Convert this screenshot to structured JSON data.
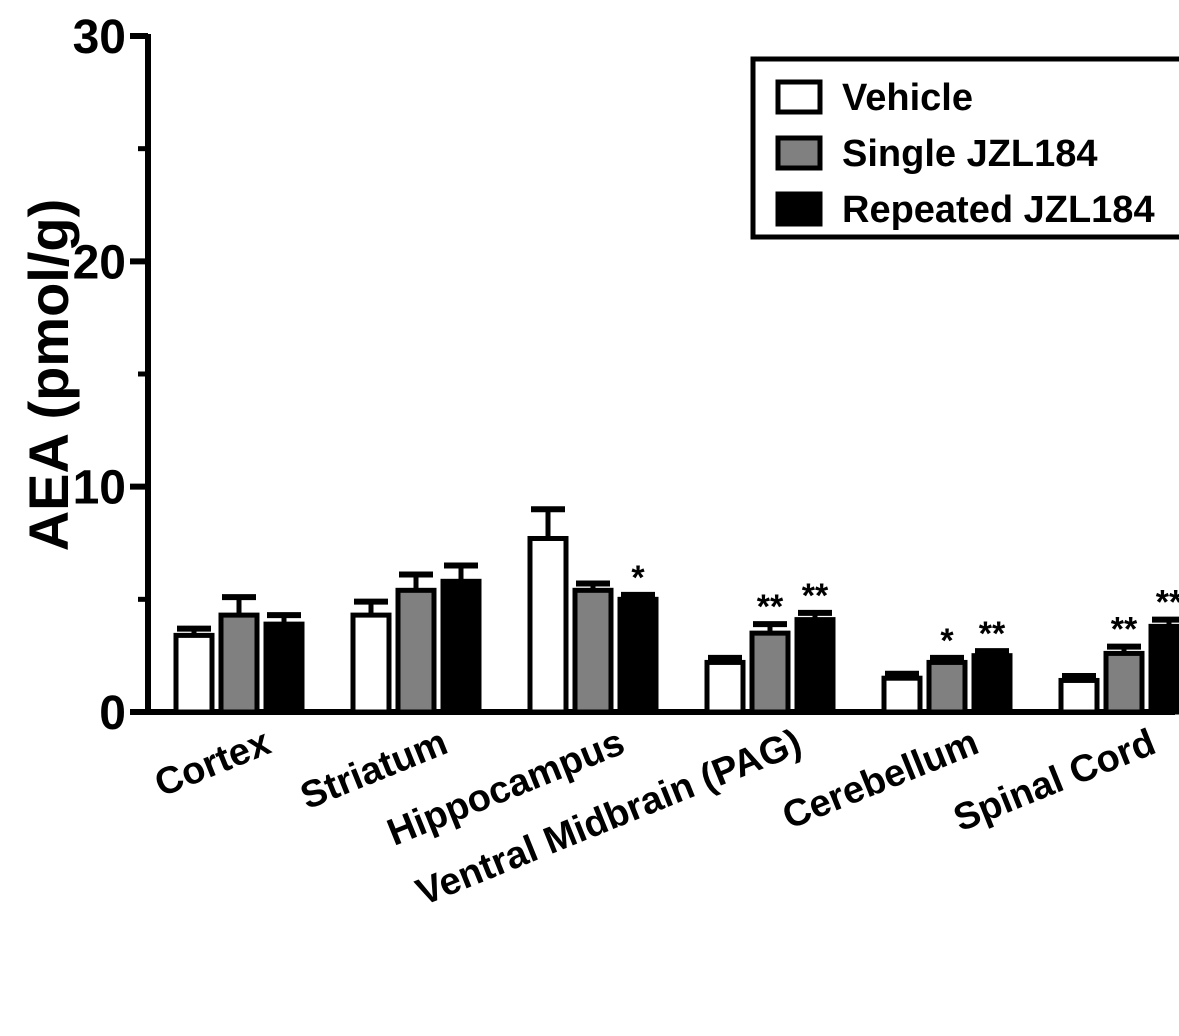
{
  "chart_data": {
    "type": "bar",
    "title": "",
    "xlabel": "",
    "ylabel": "AEA (pmol/g)",
    "ylim": [
      0,
      30
    ],
    "yticks": [
      0,
      10,
      20,
      30
    ],
    "yticks_minor": [
      5,
      15,
      25
    ],
    "grid": false,
    "legend_position": "top-right",
    "categories": [
      "Cortex",
      "Striatum",
      "Hippocampus",
      "Ventral Midbrain (PAG)",
      "Cerebellum",
      "Spinal Cord"
    ],
    "series": [
      {
        "name": "Vehicle",
        "color": "#ffffff",
        "values": [
          3.4,
          4.3,
          7.7,
          2.2,
          1.5,
          1.4
        ],
        "errors": [
          0.3,
          0.6,
          1.3,
          0.2,
          0.2,
          0.2
        ],
        "annotations": [
          "",
          "",
          "",
          "",
          "",
          ""
        ]
      },
      {
        "name": "Single JZL184",
        "color": "#808080",
        "values": [
          4.3,
          5.4,
          5.4,
          3.5,
          2.2,
          2.6
        ],
        "errors": [
          0.8,
          0.7,
          0.3,
          0.4,
          0.2,
          0.3
        ],
        "annotations": [
          "",
          "",
          "",
          "**",
          "*",
          "**"
        ]
      },
      {
        "name": "Repeated JZL184",
        "color": "#000000",
        "values": [
          3.9,
          5.8,
          5.0,
          4.1,
          2.5,
          3.8
        ],
        "errors": [
          0.4,
          0.7,
          0.2,
          0.3,
          0.2,
          0.3
        ],
        "annotations": [
          "",
          "",
          "*",
          "**",
          "**",
          "**"
        ]
      }
    ]
  }
}
